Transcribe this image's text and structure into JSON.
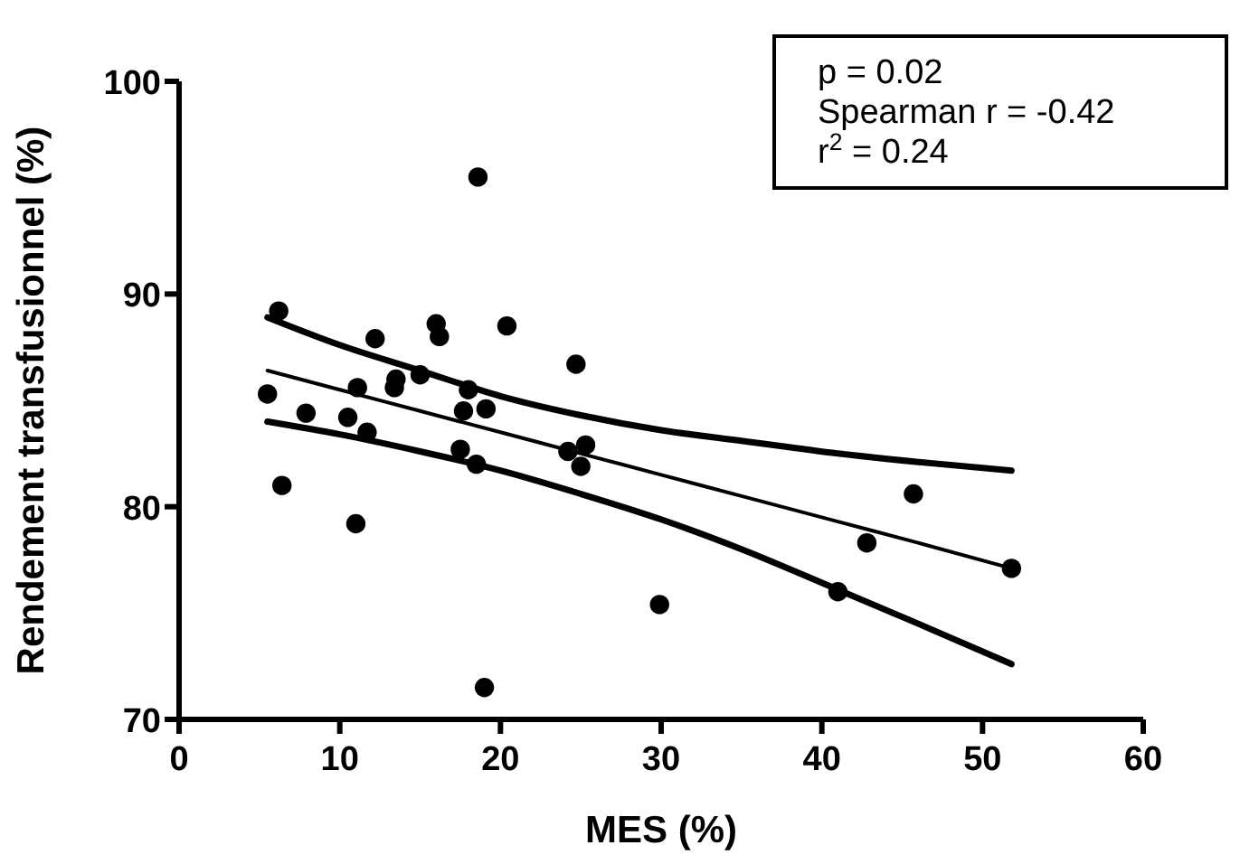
{
  "chart_data": {
    "type": "scatter",
    "xlabel": "MES (%)",
    "ylabel": "Rendement transfusionnel (%)",
    "xlim": [
      0,
      60
    ],
    "xticks": [
      0,
      10,
      20,
      30,
      40,
      50,
      60
    ],
    "ylim": [
      70,
      100
    ],
    "yticks": [
      70,
      80,
      90,
      100
    ],
    "grid": false,
    "annotations": [
      "p = 0.02",
      "Spearman r = -0.42",
      "r$^{2}$ = 0.24"
    ],
    "series": [
      {
        "type": "line",
        "color": "#000000",
        "marker": "none",
        "x": [
          5.5,
          10,
          15,
          20,
          25,
          30,
          35,
          41,
          46,
          51.8
        ],
        "values": [
          86.4,
          85.5,
          84.5,
          83.5,
          82.5,
          81.5,
          80.5,
          79.3,
          78.3,
          77.1
        ]
      },
      {
        "type": "line",
        "color": "#000000",
        "marker": "none",
        "x": [
          5.5,
          10,
          15,
          20,
          25,
          30,
          35,
          41,
          46,
          51.8
        ],
        "values": [
          88.9,
          87.6,
          86.4,
          85.2,
          84.3,
          83.6,
          83.1,
          82.5,
          82.1,
          81.7
        ]
      },
      {
        "type": "line",
        "color": "#000000",
        "marker": "none",
        "x": [
          5.5,
          10,
          15,
          20,
          25,
          30,
          35,
          41,
          46,
          51.8
        ],
        "values": [
          84.0,
          83.4,
          82.6,
          81.7,
          80.6,
          79.4,
          78.0,
          76.1,
          74.5,
          72.6
        ]
      },
      {
        "color": "#000000",
        "marker": "circle",
        "x": [
          6.2,
          5.5,
          6.4,
          7.9,
          10.5,
          11.1,
          11.7,
          11.0,
          12.2,
          13.5,
          13.4,
          15.0,
          16.0,
          16.2,
          20.4,
          18.6,
          18.0,
          17.7,
          19.1,
          17.5,
          18.5,
          19.0,
          24.7,
          24.2,
          25.3,
          25.0,
          29.9,
          41.0,
          42.8,
          45.7,
          51.8
        ],
        "values": [
          89.2,
          85.3,
          81.0,
          84.4,
          84.2,
          85.6,
          83.5,
          79.2,
          87.9,
          86.0,
          85.6,
          86.2,
          88.6,
          88.0,
          88.5,
          95.5,
          85.5,
          84.5,
          84.6,
          82.7,
          82.0,
          71.5,
          86.7,
          82.6,
          82.9,
          81.9,
          75.4,
          76.0,
          78.3,
          80.6,
          77.1
        ]
      }
    ]
  }
}
